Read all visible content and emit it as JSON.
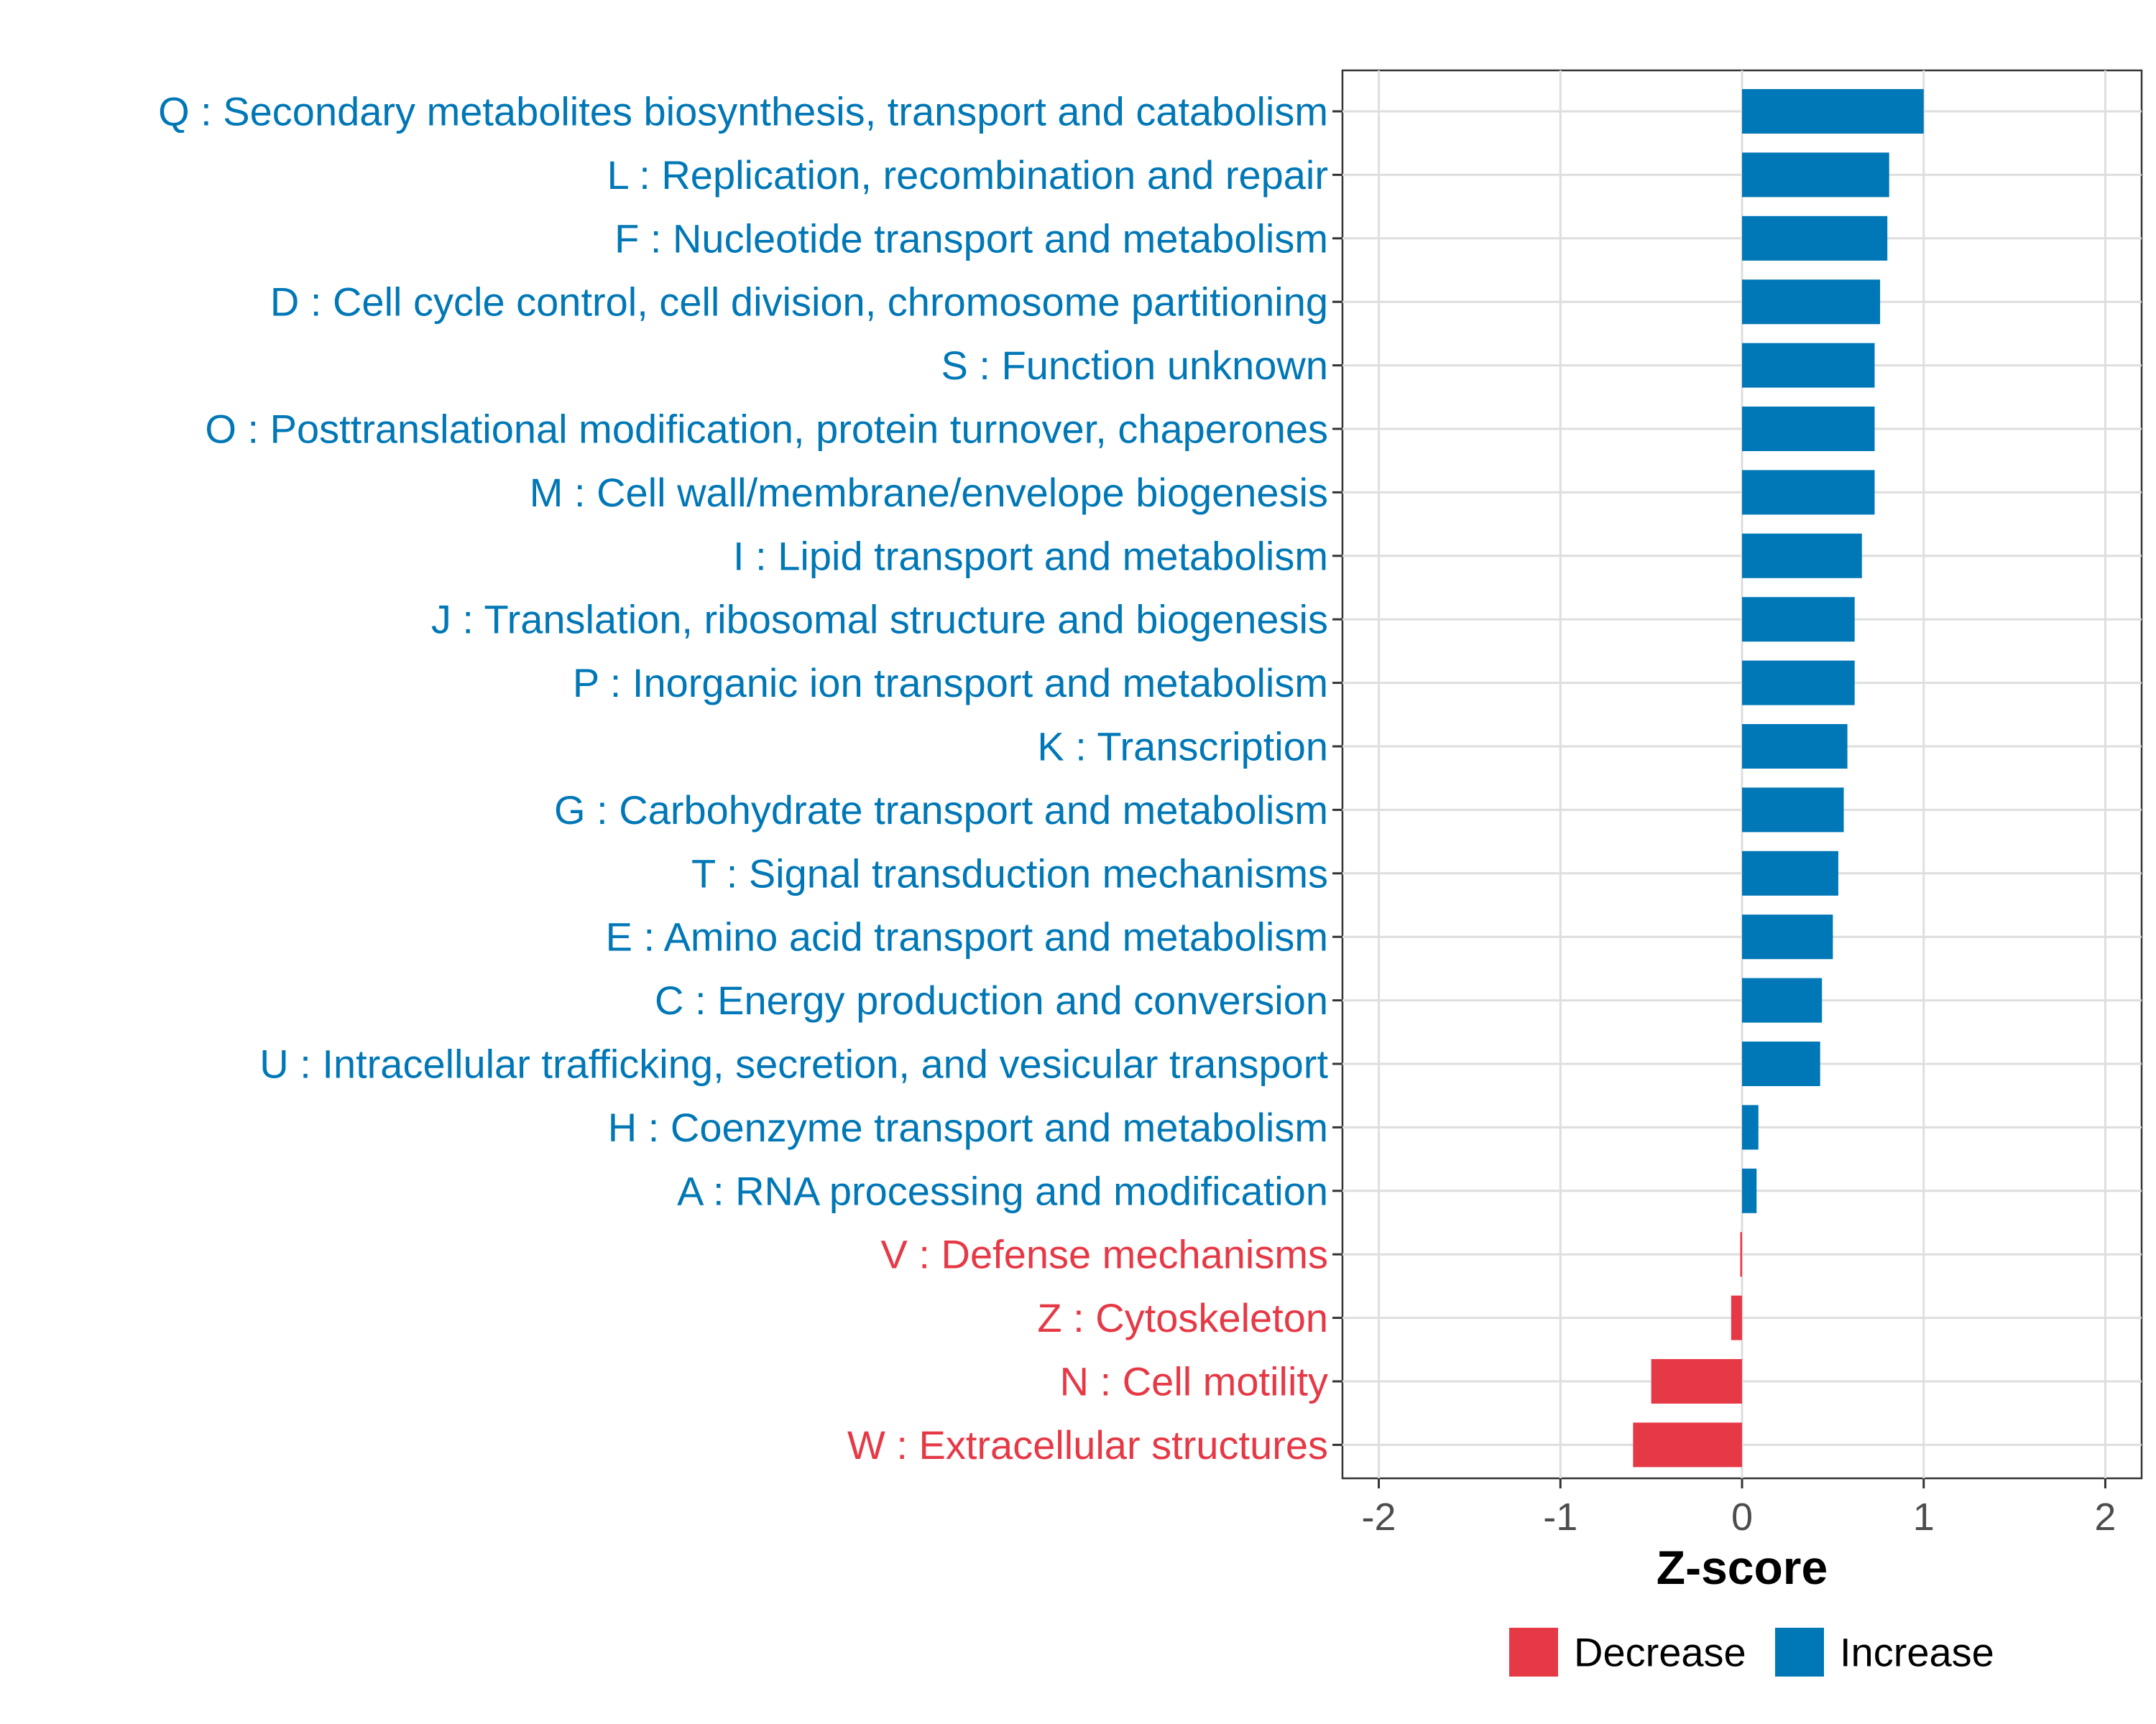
{
  "chart_data": {
    "type": "bar",
    "orientation": "horizontal",
    "xlabel": "Z-score",
    "xlim": [
      -2.2,
      2.2
    ],
    "xticks": [
      -2,
      -1,
      0,
      1,
      2
    ],
    "xtick_labels": [
      "-2",
      "-1",
      "0",
      "1",
      "2"
    ],
    "grid": true,
    "legend_position": "bottom",
    "colors": {
      "Decrease": "#e63946",
      "Increase": "#0077b6"
    },
    "legend": [
      {
        "label": "Decrease",
        "color": "#e63946"
      },
      {
        "label": "Increase",
        "color": "#0077b6"
      }
    ],
    "categories": [
      "Q : Secondary metabolites biosynthesis, transport and catabolism",
      "L : Replication, recombination and repair",
      "F : Nucleotide transport and metabolism",
      "D : Cell cycle control, cell division, chromosome partitioning",
      "S : Function unknown",
      "O : Posttranslational modification, protein turnover, chaperones",
      "M : Cell wall/membrane/envelope biogenesis",
      "I : Lipid transport and metabolism",
      "J : Translation, ribosomal structure and biogenesis",
      "P : Inorganic ion transport and metabolism",
      "K : Transcription",
      "G : Carbohydrate transport and metabolism",
      "T : Signal transduction mechanisms",
      "E : Amino acid transport and metabolism",
      "C : Energy production and conversion",
      "U : Intracellular trafficking, secretion, and vesicular transport",
      "H : Coenzyme transport and metabolism",
      "A : RNA processing and modification",
      "V : Defense mechanisms",
      "Z : Cytoskeleton",
      "N : Cell motility",
      "W : Extracellular structures"
    ],
    "values": [
      1.0,
      0.81,
      0.8,
      0.76,
      0.73,
      0.73,
      0.73,
      0.66,
      0.62,
      0.62,
      0.58,
      0.56,
      0.53,
      0.5,
      0.44,
      0.43,
      0.09,
      0.08,
      -0.01,
      -0.06,
      -0.5,
      -0.6
    ],
    "groups": [
      "Increase",
      "Increase",
      "Increase",
      "Increase",
      "Increase",
      "Increase",
      "Increase",
      "Increase",
      "Increase",
      "Increase",
      "Increase",
      "Increase",
      "Increase",
      "Increase",
      "Increase",
      "Increase",
      "Increase",
      "Increase",
      "Decrease",
      "Decrease",
      "Decrease",
      "Decrease"
    ]
  }
}
